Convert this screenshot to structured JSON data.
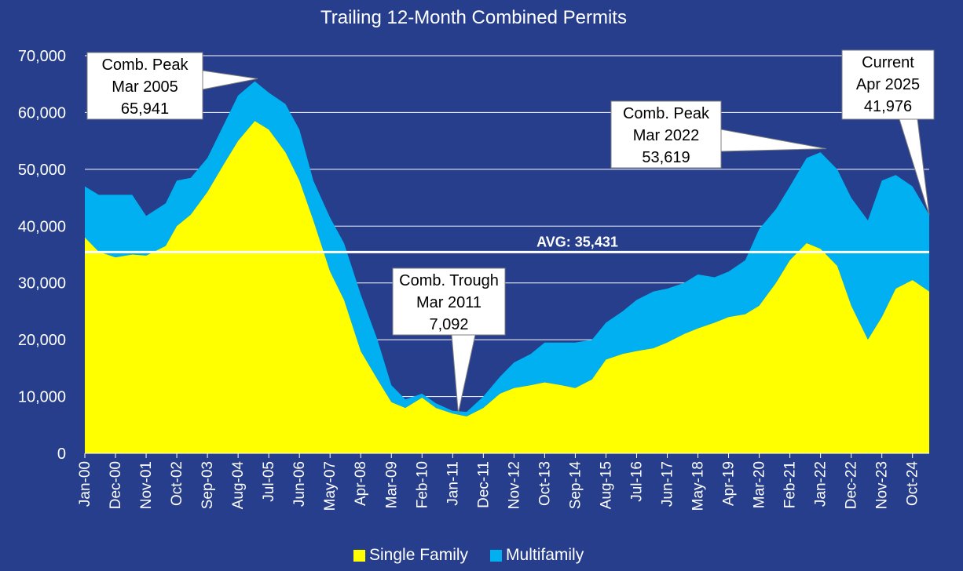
{
  "colors": {
    "background": "#263E8C",
    "single_family": "#FFFF00",
    "multifamily": "#00B0F0",
    "gridline": "#FFFFFF",
    "text": "#FFFFFF",
    "callout_fill": "#FFFFFF",
    "callout_text": "#000000"
  },
  "chart_data": {
    "type": "area",
    "title": "Trailing 12-Month Combined Permits",
    "xlabel": "",
    "ylabel": "",
    "ylim": [
      0,
      70000
    ],
    "stacked": true,
    "grid": true,
    "legend_position": "bottom",
    "y_ticks": [
      "0",
      "10,000",
      "20,000",
      "30,000",
      "40,000",
      "50,000",
      "60,000",
      "70,000"
    ],
    "x_tick_labels": [
      "Jan-00",
      "Dec-00",
      "Nov-01",
      "Oct-02",
      "Sep-03",
      "Aug-04",
      "Jul-05",
      "Jun-06",
      "May-07",
      "Apr-08",
      "Mar-09",
      "Feb-10",
      "Jan-11",
      "Dec-11",
      "Nov-12",
      "Oct-13",
      "Sep-14",
      "Aug-15",
      "Jul-16",
      "Jun-17",
      "May-18",
      "Apr-19",
      "Mar-20",
      "Feb-21",
      "Jan-22",
      "Dec-22",
      "Nov-23",
      "Oct-24"
    ],
    "x_range": [
      "Jan-00",
      "Apr-25"
    ],
    "series": [
      {
        "name": "Single Family",
        "color": "#FFFF00",
        "points": [
          [
            "Jan-00",
            38000
          ],
          [
            "Jun-00",
            35500
          ],
          [
            "Dec-00",
            34500
          ],
          [
            "Jun-01",
            35000
          ],
          [
            "Nov-01",
            34800
          ],
          [
            "Jun-02",
            36500
          ],
          [
            "Oct-02",
            40000
          ],
          [
            "Mar-03",
            42000
          ],
          [
            "Sep-03",
            46000
          ],
          [
            "Mar-04",
            51000
          ],
          [
            "Aug-04",
            55000
          ],
          [
            "Feb-05",
            58500
          ],
          [
            "Jul-05",
            57000
          ],
          [
            "Jan-06",
            53000
          ],
          [
            "Jun-06",
            48000
          ],
          [
            "Nov-06",
            41000
          ],
          [
            "May-07",
            32000
          ],
          [
            "Oct-07",
            27000
          ],
          [
            "Apr-08",
            18000
          ],
          [
            "Oct-08",
            13000
          ],
          [
            "Mar-09",
            9000
          ],
          [
            "Aug-09",
            8000
          ],
          [
            "Feb-10",
            9800
          ],
          [
            "Jul-10",
            8000
          ],
          [
            "Jan-11",
            7000
          ],
          [
            "Jun-11",
            6500
          ],
          [
            "Dec-11",
            8000
          ],
          [
            "Jun-12",
            10500
          ],
          [
            "Nov-12",
            11500
          ],
          [
            "May-13",
            12000
          ],
          [
            "Oct-13",
            12500
          ],
          [
            "Apr-14",
            12000
          ],
          [
            "Sep-14",
            11500
          ],
          [
            "Mar-15",
            13000
          ],
          [
            "Aug-15",
            16500
          ],
          [
            "Feb-16",
            17500
          ],
          [
            "Jul-16",
            18000
          ],
          [
            "Jan-17",
            18500
          ],
          [
            "Jun-17",
            19500
          ],
          [
            "Dec-17",
            21000
          ],
          [
            "May-18",
            22000
          ],
          [
            "Nov-18",
            23000
          ],
          [
            "Apr-19",
            24000
          ],
          [
            "Oct-19",
            24500
          ],
          [
            "Mar-20",
            26000
          ],
          [
            "Sep-20",
            30000
          ],
          [
            "Feb-21",
            34000
          ],
          [
            "Aug-21",
            37000
          ],
          [
            "Jan-22",
            36000
          ],
          [
            "Jul-22",
            33000
          ],
          [
            "Dec-22",
            26000
          ],
          [
            "Jun-23",
            20000
          ],
          [
            "Nov-23",
            24000
          ],
          [
            "Apr-24",
            29000
          ],
          [
            "Oct-24",
            30500
          ],
          [
            "Apr-25",
            28500
          ]
        ]
      },
      {
        "name": "Multifamily",
        "color": "#00B0F0",
        "points": [
          [
            "Jan-00",
            9000
          ],
          [
            "Jun-00",
            10000
          ],
          [
            "Dec-00",
            11000
          ],
          [
            "Jun-01",
            10500
          ],
          [
            "Nov-01",
            7000
          ],
          [
            "Jun-02",
            7500
          ],
          [
            "Oct-02",
            8000
          ],
          [
            "Mar-03",
            6500
          ],
          [
            "Sep-03",
            6000
          ],
          [
            "Mar-04",
            7000
          ],
          [
            "Aug-04",
            8000
          ],
          [
            "Feb-05",
            7000
          ],
          [
            "Jul-05",
            6500
          ],
          [
            "Jan-06",
            8500
          ],
          [
            "Jun-06",
            9000
          ],
          [
            "Nov-06",
            7000
          ],
          [
            "May-07",
            9500
          ],
          [
            "Oct-07",
            10000
          ],
          [
            "Apr-08",
            10000
          ],
          [
            "Oct-08",
            7000
          ],
          [
            "Mar-09",
            3000
          ],
          [
            "Aug-09",
            1500
          ],
          [
            "Feb-10",
            700
          ],
          [
            "Jul-10",
            800
          ],
          [
            "Jan-11",
            500
          ],
          [
            "Jun-11",
            800
          ],
          [
            "Dec-11",
            2000
          ],
          [
            "Jun-12",
            3000
          ],
          [
            "Nov-12",
            4500
          ],
          [
            "May-13",
            5500
          ],
          [
            "Oct-13",
            7000
          ],
          [
            "Apr-14",
            7500
          ],
          [
            "Sep-14",
            8000
          ],
          [
            "Mar-15",
            7000
          ],
          [
            "Aug-15",
            6500
          ],
          [
            "Feb-16",
            7500
          ],
          [
            "Jul-16",
            9000
          ],
          [
            "Jan-17",
            10000
          ],
          [
            "Jun-17",
            9500
          ],
          [
            "Dec-17",
            9000
          ],
          [
            "May-18",
            9500
          ],
          [
            "Nov-18",
            8000
          ],
          [
            "Apr-19",
            8000
          ],
          [
            "Oct-19",
            9500
          ],
          [
            "Mar-20",
            13500
          ],
          [
            "Sep-20",
            13000
          ],
          [
            "Feb-21",
            13000
          ],
          [
            "Aug-21",
            15000
          ],
          [
            "Jan-22",
            17000
          ],
          [
            "Jul-22",
            17000
          ],
          [
            "Dec-22",
            19000
          ],
          [
            "Jun-23",
            21000
          ],
          [
            "Nov-23",
            24000
          ],
          [
            "Apr-24",
            20000
          ],
          [
            "Oct-24",
            16500
          ],
          [
            "Apr-25",
            13476
          ]
        ]
      }
    ],
    "average_line": {
      "label": "AVG: 35,431",
      "value": 35431
    },
    "annotations": [
      {
        "lines": [
          "Comb. Peak",
          "Mar 2005",
          "65,941"
        ],
        "point_x": "Mar-05",
        "point_y": 65941
      },
      {
        "lines": [
          "Comb. Trough",
          "Mar 2011",
          "7,092"
        ],
        "point_x": "Mar-11",
        "point_y": 7092
      },
      {
        "lines": [
          "Comb. Peak",
          "Mar 2022",
          "53,619"
        ],
        "point_x": "Mar-22",
        "point_y": 53619
      },
      {
        "lines": [
          "Current",
          "Apr 2025",
          "41,976"
        ],
        "point_x": "Apr-25",
        "point_y": 41976
      }
    ]
  }
}
